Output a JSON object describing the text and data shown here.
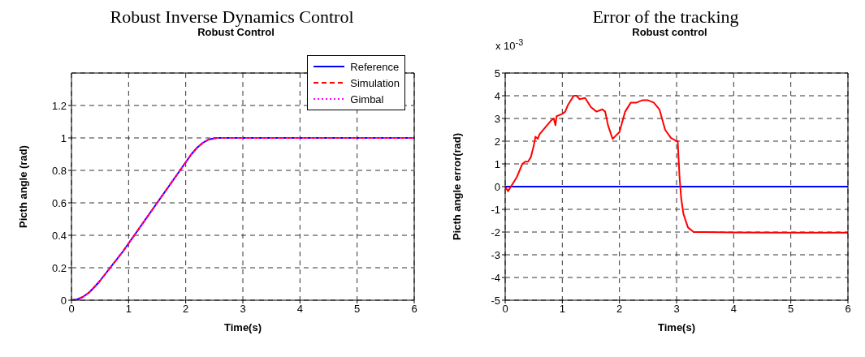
{
  "chart_data": [
    {
      "type": "line",
      "title": "Robust Inverse Dynamics Control",
      "subtitle": "Robust Control",
      "xlabel": "Time(s)",
      "ylabel": "Picth angle (rad)",
      "xlim": [
        0,
        6
      ],
      "xticks": [
        0,
        1,
        2,
        3,
        4,
        5,
        6
      ],
      "ylim": [
        0,
        1.4
      ],
      "yticks": [
        0,
        0.2,
        0.4,
        0.6,
        0.8,
        1,
        1.2
      ],
      "grid": true,
      "legend": "top right",
      "x": [
        0,
        0.1,
        0.2,
        0.3,
        0.4,
        0.5,
        0.6,
        0.7,
        0.8,
        0.9,
        1,
        1.2,
        1.4,
        1.5,
        1.6,
        1.8,
        2,
        2.1,
        2.2,
        2.3,
        2.4,
        2.5,
        2.55,
        3,
        4,
        5,
        6
      ],
      "series": [
        {
          "name": "Reference",
          "color": "#0000ff",
          "line_style": "solid",
          "values": [
            0,
            0.005,
            0.02,
            0.045,
            0.08,
            0.12,
            0.165,
            0.21,
            0.255,
            0.3,
            0.35,
            0.45,
            0.55,
            0.6,
            0.65,
            0.75,
            0.85,
            0.9,
            0.94,
            0.97,
            0.99,
            0.998,
            1,
            1,
            1,
            1,
            1
          ]
        },
        {
          "name": "Simulation",
          "color": "#ff0000",
          "line_style": "dashed",
          "values": [
            0,
            0.005,
            0.02,
            0.045,
            0.08,
            0.12,
            0.165,
            0.21,
            0.255,
            0.3,
            0.35,
            0.45,
            0.55,
            0.6,
            0.65,
            0.75,
            0.85,
            0.9,
            0.94,
            0.97,
            0.99,
            0.998,
            1,
            1,
            1,
            1,
            1
          ]
        },
        {
          "name": "Gimbal",
          "color": "#ff00ff",
          "line_style": "dotted",
          "values": [
            0,
            0.005,
            0.02,
            0.045,
            0.08,
            0.12,
            0.165,
            0.21,
            0.255,
            0.3,
            0.35,
            0.45,
            0.55,
            0.6,
            0.65,
            0.75,
            0.85,
            0.9,
            0.94,
            0.97,
            0.99,
            0.998,
            1,
            1,
            1,
            1,
            1
          ]
        }
      ]
    },
    {
      "type": "line",
      "title": "Error of the tracking",
      "subtitle": "Robust control",
      "xlabel": "Time(s)",
      "ylabel": "Picth angle error(rad)",
      "annotations": [
        "x 10$^{-3}$"
      ],
      "xlim": [
        0,
        6
      ],
      "xticks": [
        0,
        1,
        2,
        3,
        4,
        5,
        6
      ],
      "ylim": [
        -5,
        5
      ],
      "yticks": [
        -5,
        -4,
        -3,
        -2,
        -1,
        0,
        1,
        2,
        3,
        4,
        5
      ],
      "grid": true,
      "legend": false,
      "series": [
        {
          "color": "#0000ff",
          "line_style": "solid",
          "x": [
            0,
            6
          ],
          "values": [
            0,
            0
          ]
        },
        {
          "color": "#ff0000",
          "line_style": "solid",
          "x": [
            0,
            0.05,
            0.1,
            0.2,
            0.3,
            0.35,
            0.4,
            0.45,
            0.5,
            0.53,
            0.57,
            0.6,
            0.7,
            0.8,
            0.85,
            0.88,
            0.9,
            1,
            1.05,
            1.1,
            1.2,
            1.25,
            1.3,
            1.4,
            1.5,
            1.6,
            1.7,
            1.75,
            1.8,
            1.88,
            1.92,
            2,
            2.1,
            2.2,
            2.3,
            2.4,
            2.5,
            2.6,
            2.7,
            2.8,
            2.9,
            3,
            3.02,
            3.05,
            3.08,
            3.12,
            3.2,
            3.3,
            3.5,
            4,
            5,
            6
          ],
          "values": [
            0,
            -0.2,
            0,
            0.4,
            1,
            1.1,
            1.1,
            1.3,
            1.8,
            2.2,
            2.1,
            2.3,
            2.6,
            2.9,
            3,
            2.7,
            3.1,
            3.2,
            3.3,
            3.6,
            4,
            4,
            3.85,
            3.9,
            3.5,
            3.3,
            3.4,
            3.3,
            2.7,
            2.1,
            2.2,
            2.4,
            3.3,
            3.7,
            3.7,
            3.8,
            3.8,
            3.7,
            3.4,
            2.5,
            2.15,
            2,
            2,
            0.5,
            -0.5,
            -1.2,
            -1.8,
            -2,
            -2,
            -2.02,
            -2.03,
            -2.03
          ]
        }
      ]
    }
  ]
}
